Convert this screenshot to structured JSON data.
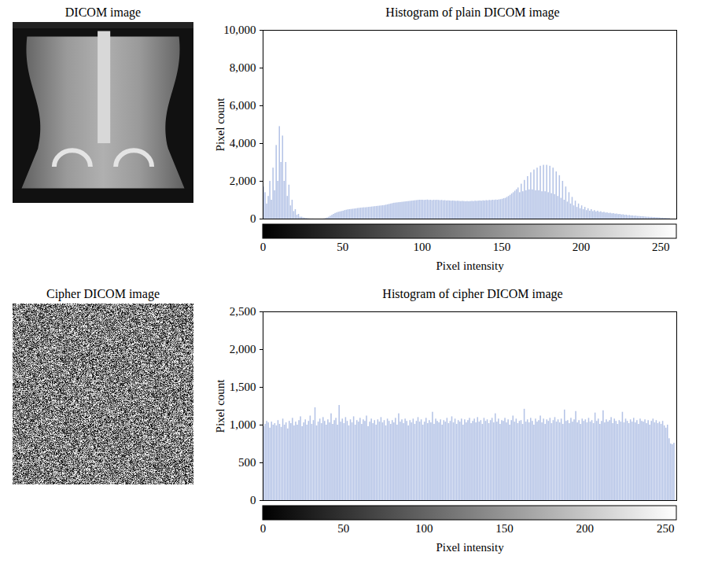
{
  "chart_data": [
    {
      "type": "histogram",
      "title": "Histogram of plain DICOM image",
      "x_label": "Pixel intensity",
      "y_label": "Pixel count",
      "color": "#b4c3e6",
      "xlim": [
        0,
        260
      ],
      "ylim": [
        0,
        10000
      ],
      "xticks": [
        0,
        50,
        100,
        150,
        200,
        250
      ],
      "yticks": [
        0,
        2000,
        4000,
        6000,
        8000,
        10000
      ],
      "bins": [
        0,
        1,
        2,
        3,
        4,
        5,
        6,
        7,
        8,
        9,
        10,
        11,
        12,
        13,
        14,
        15,
        16,
        17,
        18,
        19,
        20,
        21,
        22,
        23,
        24,
        25,
        26,
        27,
        28,
        29,
        30,
        31,
        32,
        33,
        34,
        35,
        36,
        37,
        38,
        39,
        40,
        41,
        42,
        43,
        44,
        45,
        46,
        47,
        48,
        49,
        50,
        51,
        52,
        53,
        54,
        55,
        56,
        57,
        58,
        59,
        60,
        61,
        62,
        63,
        64,
        65,
        66,
        67,
        68,
        69,
        70,
        71,
        72,
        73,
        74,
        75,
        76,
        77,
        78,
        79,
        80,
        81,
        82,
        83,
        84,
        85,
        86,
        87,
        88,
        89,
        90,
        91,
        92,
        93,
        94,
        95,
        96,
        97,
        98,
        99,
        100,
        101,
        102,
        103,
        104,
        105,
        106,
        107,
        108,
        109,
        110,
        111,
        112,
        113,
        114,
        115,
        116,
        117,
        118,
        119,
        120,
        121,
        122,
        123,
        124,
        125,
        126,
        127,
        128,
        129,
        130,
        131,
        132,
        133,
        134,
        135,
        136,
        137,
        138,
        139,
        140,
        141,
        142,
        143,
        144,
        145,
        146,
        147,
        148,
        149,
        150,
        151,
        152,
        153,
        154,
        155,
        156,
        157,
        158,
        159,
        160,
        161,
        162,
        163,
        164,
        165,
        166,
        167,
        168,
        169,
        170,
        171,
        172,
        173,
        174,
        175,
        176,
        177,
        178,
        179,
        180,
        181,
        182,
        183,
        184,
        185,
        186,
        187,
        188,
        189,
        190,
        191,
        192,
        193,
        194,
        195,
        196,
        197,
        198,
        199,
        200,
        201,
        202,
        203,
        204,
        205,
        206,
        207,
        208,
        209,
        210,
        211,
        212,
        213,
        214,
        215,
        216,
        217,
        218,
        219,
        220,
        221,
        222,
        223,
        224,
        225,
        226,
        227,
        228,
        229,
        230,
        231,
        232,
        233,
        234,
        235,
        236,
        237,
        238,
        239,
        240,
        241,
        242,
        243,
        244,
        245,
        246,
        247,
        248,
        249,
        250,
        251,
        252,
        253,
        254,
        255,
        256
      ],
      "counts": [
        1700,
        1400,
        800,
        1200,
        2000,
        1000,
        2700,
        1500,
        3900,
        2000,
        4900,
        3000,
        4400,
        2000,
        3000,
        1200,
        1800,
        700,
        1000,
        400,
        500,
        200,
        250,
        100,
        100,
        60,
        50,
        30,
        20,
        10,
        5,
        5,
        0,
        0,
        0,
        0,
        0,
        0,
        10,
        30,
        60,
        100,
        150,
        200,
        250,
        300,
        330,
        360,
        380,
        400,
        420,
        450,
        470,
        490,
        500,
        510,
        520,
        530,
        540,
        560,
        570,
        580,
        590,
        600,
        600,
        610,
        620,
        630,
        640,
        650,
        660,
        670,
        680,
        690,
        700,
        710,
        720,
        740,
        760,
        780,
        800,
        820,
        840,
        850,
        860,
        870,
        880,
        890,
        900,
        910,
        920,
        930,
        940,
        950,
        960,
        970,
        980,
        990,
        1000,
        1000,
        1000,
        990,
        1000,
        1010,
        990,
        1000,
        980,
        1000,
        990,
        1000,
        990,
        980,
        990,
        970,
        980,
        960,
        970,
        960,
        950,
        960,
        950,
        940,
        950,
        940,
        930,
        940,
        930,
        920,
        930,
        920,
        930,
        940,
        930,
        950,
        940,
        950,
        960,
        950,
        970,
        960,
        980,
        970,
        990,
        980,
        1000,
        990,
        1010,
        1000,
        1020,
        1030,
        1050,
        1080,
        1100,
        1150,
        1200,
        1260,
        1330,
        1400,
        1480,
        1560,
        1650,
        1400,
        1850,
        1450,
        2050,
        1500,
        2250,
        1550,
        2450,
        1550,
        2600,
        1500,
        2700,
        1500,
        2800,
        1450,
        2850,
        1450,
        2850,
        1400,
        2800,
        1350,
        2700,
        1300,
        2500,
        1200,
        2300,
        1100,
        2000,
        1000,
        1700,
        900,
        1400,
        800,
        1150,
        700,
        950,
        620,
        800,
        550,
        700,
        500,
        620,
        450,
        550,
        420,
        500,
        400,
        450,
        380,
        420,
        360,
        390,
        340,
        360,
        320,
        330,
        300,
        310,
        280,
        290,
        260,
        270,
        240,
        250,
        220,
        230,
        200,
        210,
        180,
        190,
        170,
        170,
        150,
        160,
        140,
        140,
        130,
        130,
        120,
        110,
        100,
        100,
        90,
        90,
        80,
        80,
        70,
        70,
        60,
        50,
        50,
        40,
        40,
        30,
        30
      ]
    },
    {
      "type": "histogram",
      "title": "Histogram of cipher DICOM image",
      "x_label": "Pixel intensity",
      "y_label": "Pixel count",
      "color": "#b4c3e6",
      "xlim": [
        0,
        257
      ],
      "ylim": [
        0,
        2500
      ],
      "xticks": [
        0,
        50,
        100,
        150,
        200,
        250
      ],
      "yticks": [
        0,
        500,
        1000,
        1500,
        2000,
        2500
      ],
      "bins": [
        0,
        1,
        2,
        3,
        4,
        5,
        6,
        7,
        8,
        9,
        10,
        11,
        12,
        13,
        14,
        15,
        16,
        17,
        18,
        19,
        20,
        21,
        22,
        23,
        24,
        25,
        26,
        27,
        28,
        29,
        30,
        31,
        32,
        33,
        34,
        35,
        36,
        37,
        38,
        39,
        40,
        41,
        42,
        43,
        44,
        45,
        46,
        47,
        48,
        49,
        50,
        51,
        52,
        53,
        54,
        55,
        56,
        57,
        58,
        59,
        60,
        61,
        62,
        63,
        64,
        65,
        66,
        67,
        68,
        69,
        70,
        71,
        72,
        73,
        74,
        75,
        76,
        77,
        78,
        79,
        80,
        81,
        82,
        83,
        84,
        85,
        86,
        87,
        88,
        89,
        90,
        91,
        92,
        93,
        94,
        95,
        96,
        97,
        98,
        99,
        100,
        101,
        102,
        103,
        104,
        105,
        106,
        107,
        108,
        109,
        110,
        111,
        112,
        113,
        114,
        115,
        116,
        117,
        118,
        119,
        120,
        121,
        122,
        123,
        124,
        125,
        126,
        127,
        128,
        129,
        130,
        131,
        132,
        133,
        134,
        135,
        136,
        137,
        138,
        139,
        140,
        141,
        142,
        143,
        144,
        145,
        146,
        147,
        148,
        149,
        150,
        151,
        152,
        153,
        154,
        155,
        156,
        157,
        158,
        159,
        160,
        161,
        162,
        163,
        164,
        165,
        166,
        167,
        168,
        169,
        170,
        171,
        172,
        173,
        174,
        175,
        176,
        177,
        178,
        179,
        180,
        181,
        182,
        183,
        184,
        185,
        186,
        187,
        188,
        189,
        190,
        191,
        192,
        193,
        194,
        195,
        196,
        197,
        198,
        199,
        200,
        201,
        202,
        203,
        204,
        205,
        206,
        207,
        208,
        209,
        210,
        211,
        212,
        213,
        214,
        215,
        216,
        217,
        218,
        219,
        220,
        221,
        222,
        223,
        224,
        225,
        226,
        227,
        228,
        229,
        230,
        231,
        232,
        233,
        234,
        235,
        236,
        237,
        238,
        239,
        240,
        241,
        242,
        243,
        244,
        245,
        246,
        247,
        248,
        249,
        250,
        251,
        252,
        253,
        254,
        255,
        256
      ],
      "counts": [
        980,
        1010,
        1050,
        1030,
        960,
        1040,
        1000,
        1020,
        990,
        1060,
        1010,
        970,
        1080,
        1000,
        1030,
        950,
        1050,
        1020,
        1090,
        990,
        1040,
        1000,
        1060,
        1110,
        980,
        1030,
        1070,
        1000,
        1050,
        1120,
        1010,
        1060,
        1230,
        990,
        1040,
        1080,
        1020,
        1100,
        1050,
        1000,
        1070,
        1030,
        1150,
        1010,
        1060,
        1090,
        1000,
        1260,
        1040,
        1080,
        1020,
        1100,
        1050,
        990,
        1070,
        1030,
        1110,
        1000,
        1060,
        1040,
        1090,
        1010,
        1070,
        1050,
        1120,
        980,
        1040,
        1080,
        1020,
        1060,
        1000,
        1070,
        1040,
        1100,
        1030,
        1060,
        990,
        1080,
        1050,
        1010,
        1060,
        1030,
        1090,
        1000,
        1150,
        1040,
        1070,
        1020,
        1080,
        1050,
        990,
        1060,
        1030,
        1080,
        1010,
        1050,
        1100,
        1040,
        1070,
        1000,
        1040,
        1090,
        1020,
        1060,
        1030,
        1170,
        1010,
        1080,
        1050,
        1030,
        1070,
        1000,
        1060,
        1040,
        1090,
        1020,
        1050,
        1110,
        1030,
        1080,
        1010,
        1060,
        1040,
        1080,
        1000,
        1070,
        1030,
        1060,
        1090,
        1020,
        1050,
        1080,
        1030,
        1100,
        1040,
        1060,
        1010,
        1090,
        1050,
        1070,
        1020,
        1060,
        1090,
        1030,
        1150,
        1040,
        1080,
        1010,
        1060,
        1050,
        1090,
        1030,
        1070,
        1000,
        1060,
        1120,
        1040,
        1080,
        1020,
        1050,
        1060,
        1010,
        1210,
        1040,
        1070,
        1030,
        1090,
        1050,
        1000,
        1080,
        1040,
        1060,
        1120,
        1030,
        1080,
        1010,
        1070,
        1050,
        1090,
        1020,
        1060,
        1100,
        1040,
        1070,
        1030,
        1080,
        1010,
        1200,
        1050,
        1060,
        1020,
        1090,
        1040,
        1070,
        1180,
        1030,
        1060,
        1010,
        1080,
        1050,
        1070,
        1030,
        1090,
        1040,
        1060,
        1020,
        1160,
        1050,
        1080,
        1010,
        1050,
        1190,
        1030,
        1070,
        1040,
        1060,
        1100,
        1020,
        1080,
        1050,
        1010,
        1060,
        1040,
        1170,
        1030,
        1080,
        1050,
        1020,
        1070,
        1040,
        1090,
        1030,
        1060,
        1010,
        1080,
        1050,
        1040,
        1070,
        1020,
        1060,
        1000,
        1050,
        1080,
        1030,
        1060,
        1020,
        1040,
        1010,
        1050,
        990,
        960,
        1000,
        820,
        750,
        740,
        760
      ]
    }
  ],
  "images": [
    {
      "title": "DICOM image"
    },
    {
      "title": "Cipher DICOM image"
    }
  ]
}
